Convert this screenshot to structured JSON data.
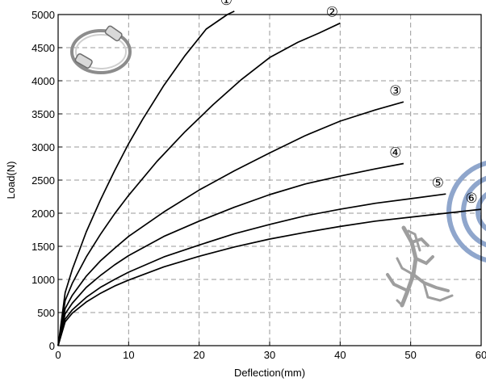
{
  "chart_data": {
    "type": "line",
    "title": "",
    "xlabel": "Deflection(mm)",
    "ylabel": "Load(N)",
    "xlim": [
      0,
      60
    ],
    "ylim": [
      0,
      5000
    ],
    "xticks": [
      0,
      10,
      20,
      30,
      40,
      50,
      60
    ],
    "yticks": [
      0,
      500,
      1000,
      1500,
      2000,
      2500,
      3000,
      3500,
      4000,
      4500,
      5000
    ],
    "grid": true,
    "line_color": "#000000",
    "series": [
      {
        "label": "①",
        "x": [
          0,
          1,
          2,
          4,
          6,
          8,
          10,
          12,
          15,
          18,
          21,
          24,
          25
        ],
        "y": [
          0,
          800,
          1150,
          1720,
          2200,
          2640,
          3050,
          3420,
          3930,
          4380,
          4780,
          5000,
          5050
        ]
      },
      {
        "label": "②",
        "x": [
          0,
          1,
          2,
          4,
          6,
          8,
          10,
          14,
          18,
          22,
          26,
          30,
          34,
          37,
          40
        ],
        "y": [
          0,
          680,
          940,
          1340,
          1680,
          1990,
          2270,
          2780,
          3230,
          3640,
          4020,
          4350,
          4580,
          4720,
          4870
        ]
      },
      {
        "label": "③",
        "x": [
          0,
          1,
          2,
          4,
          6,
          8,
          10,
          15,
          20,
          25,
          30,
          35,
          40,
          45,
          49
        ],
        "y": [
          0,
          560,
          760,
          1050,
          1280,
          1470,
          1650,
          2020,
          2350,
          2640,
          2910,
          3170,
          3390,
          3560,
          3680
        ]
      },
      {
        "label": "④",
        "x": [
          0,
          1,
          2,
          4,
          6,
          8,
          10,
          15,
          20,
          25,
          30,
          35,
          40,
          45,
          49
        ],
        "y": [
          0,
          480,
          640,
          880,
          1060,
          1220,
          1360,
          1650,
          1880,
          2090,
          2280,
          2440,
          2560,
          2670,
          2750
        ]
      },
      {
        "label": "⑤",
        "x": [
          0,
          1,
          2,
          4,
          6,
          8,
          10,
          15,
          20,
          25,
          30,
          35,
          40,
          45,
          50,
          55
        ],
        "y": [
          0,
          400,
          540,
          730,
          880,
          1000,
          1110,
          1340,
          1520,
          1690,
          1830,
          1960,
          2060,
          2150,
          2220,
          2290
        ]
      },
      {
        "label": "⑥",
        "x": [
          0,
          1,
          2,
          4,
          6,
          8,
          10,
          15,
          20,
          25,
          30,
          35,
          40,
          45,
          50,
          55,
          60
        ],
        "y": [
          0,
          360,
          490,
          660,
          790,
          900,
          990,
          1190,
          1350,
          1490,
          1610,
          1710,
          1800,
          1880,
          1940,
          2000,
          2060
        ]
      }
    ]
  }
}
